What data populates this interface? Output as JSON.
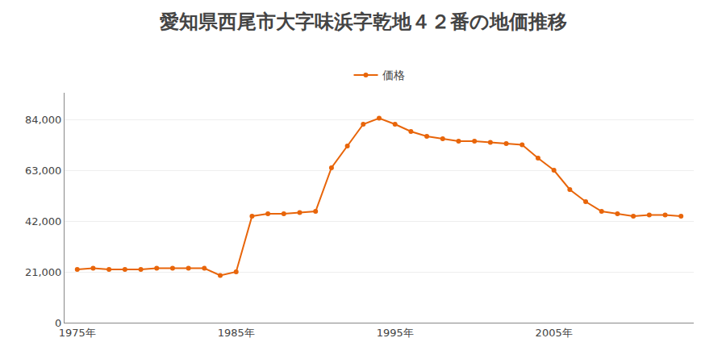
{
  "chart_data": {
    "type": "line",
    "title": "愛知県西尾市大字味浜字乾地４２番の地価推移",
    "series": [
      {
        "name": "価格",
        "color": "#e8650a",
        "marker": "circle",
        "values": [
          22000,
          22500,
          22000,
          22000,
          22000,
          22500,
          22500,
          22500,
          22500,
          19500,
          21000,
          44000,
          45000,
          45000,
          45500,
          46000,
          64000,
          73000,
          82000,
          84500,
          82000,
          79000,
          77000,
          76000,
          75000,
          75000,
          74500,
          74000,
          73500,
          68000,
          63000,
          55000,
          50000,
          46000,
          45000,
          44000,
          44500,
          44500,
          44000
        ]
      }
    ],
    "x": [
      1975,
      1976,
      1977,
      1978,
      1979,
      1980,
      1981,
      1982,
      1983,
      1984,
      1985,
      1986,
      1987,
      1988,
      1989,
      1990,
      1991,
      1992,
      1993,
      1994,
      1995,
      1996,
      1997,
      1998,
      1999,
      2000,
      2001,
      2002,
      2003,
      2004,
      2005,
      2006,
      2007,
      2008,
      2009,
      2010,
      2011,
      2012,
      2013
    ],
    "xlim": [
      1974.2,
      2013.8
    ],
    "xticks": [
      {
        "value": 1975,
        "label": "1975年"
      },
      {
        "value": 1985,
        "label": "1985年"
      },
      {
        "value": 1995,
        "label": "1995年"
      },
      {
        "value": 2005,
        "label": "2005年"
      }
    ],
    "ylim": [
      0,
      95000
    ],
    "yticks": [
      0,
      {
        "value": 21000,
        "label": "21,000"
      },
      {
        "value": 42000,
        "label": "42,000"
      },
      {
        "value": 63000,
        "label": "63,000"
      },
      {
        "value": 84000,
        "label": "84,000"
      }
    ],
    "grid": "y",
    "legend": "top"
  }
}
